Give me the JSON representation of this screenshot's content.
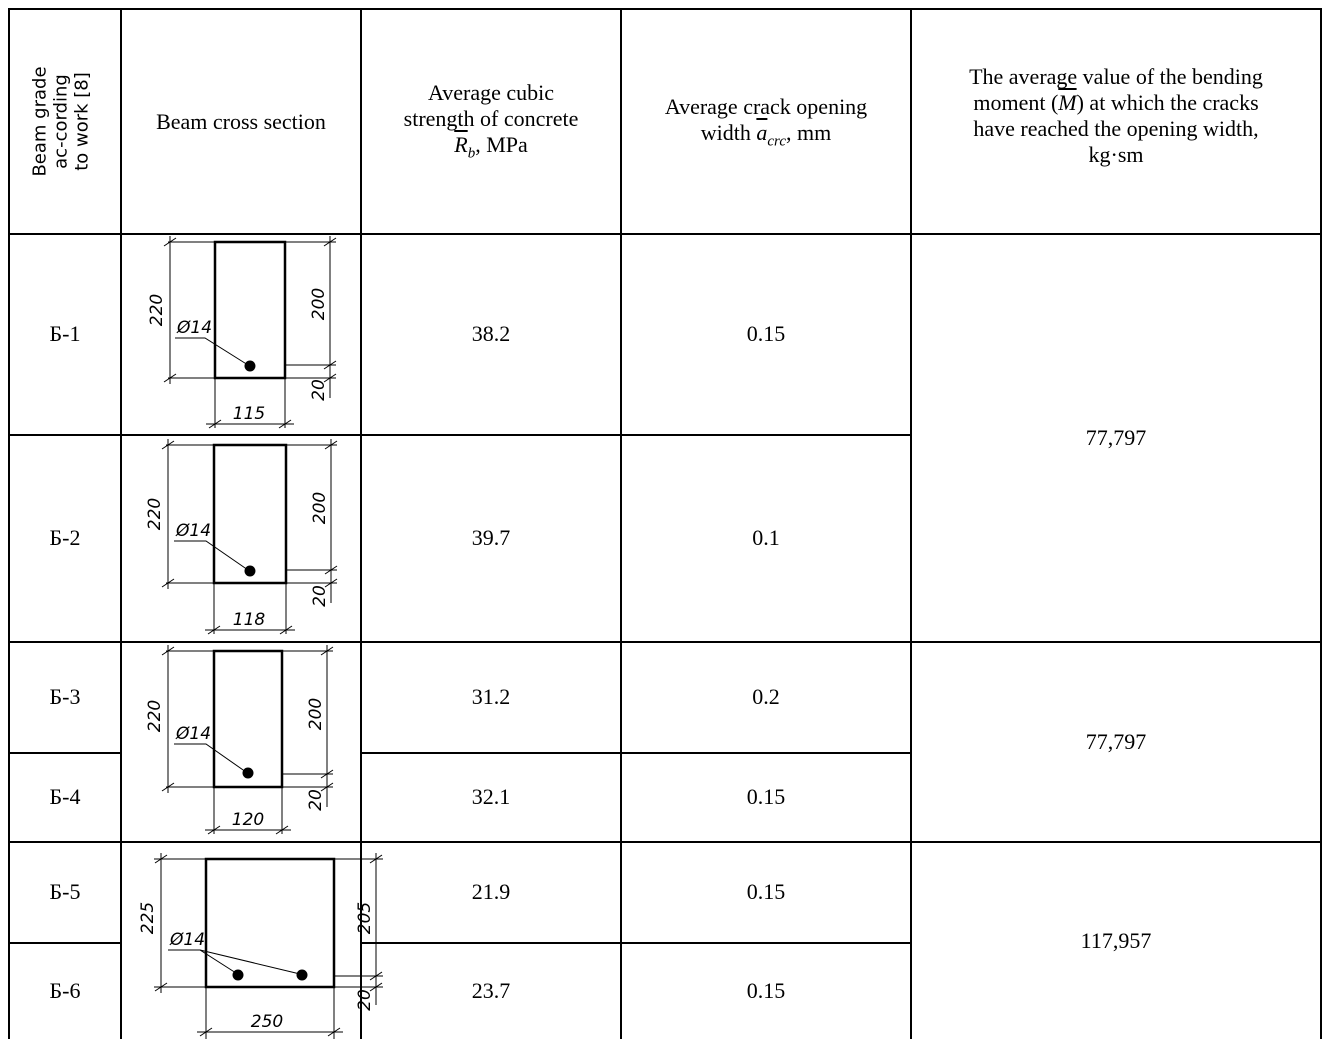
{
  "header": {
    "col1": "Beam grade ac-cording to work [8]",
    "col2": "Beam cross section",
    "col3_line1": "Average cubic",
    "col3_line2": "strength of concrete",
    "col3_sym": "R",
    "col3_sub": "b",
    "col3_unit": ", MPa",
    "col4_line1": "Average crack opening",
    "col4_pre": "width ",
    "col4_sym": "a",
    "col4_sub": "crc",
    "col4_unit": ", mm",
    "col5_line1": "The average value of the bending",
    "col5_pre": "moment (",
    "col5_sym": "M",
    "col5_post": ") at which the cracks",
    "col5_line3": "have reached the opening width,",
    "col5_line4": "kg·sm"
  },
  "rows": [
    {
      "grade": "Б-1",
      "strength": "38.2",
      "crack": "0.15"
    },
    {
      "grade": "Б-2",
      "strength": "39.7",
      "crack": "0.1"
    },
    {
      "grade": "Б-3",
      "strength": "31.2",
      "crack": "0.2"
    },
    {
      "grade": "Б-4",
      "strength": "32.1",
      "crack": "0.15"
    },
    {
      "grade": "Б-5",
      "strength": "21.9",
      "crack": "0.15"
    },
    {
      "grade": "Б-6",
      "strength": "23.7",
      "crack": "0.15"
    }
  ],
  "moments": [
    "77,797",
    "77,797",
    "117,957"
  ],
  "sections": [
    {
      "height": "220",
      "depth": "200",
      "cover": "20",
      "width": "115",
      "bar": "Ø14"
    },
    {
      "height": "220",
      "depth": "200",
      "cover": "20",
      "width": "118",
      "bar": "Ø14"
    },
    {
      "height": "220",
      "depth": "200",
      "cover": "20",
      "width": "120",
      "bar": "Ø14"
    },
    {
      "height": "225",
      "depth": "205",
      "cover": "20",
      "width": "250",
      "bar": "Ø14"
    }
  ]
}
